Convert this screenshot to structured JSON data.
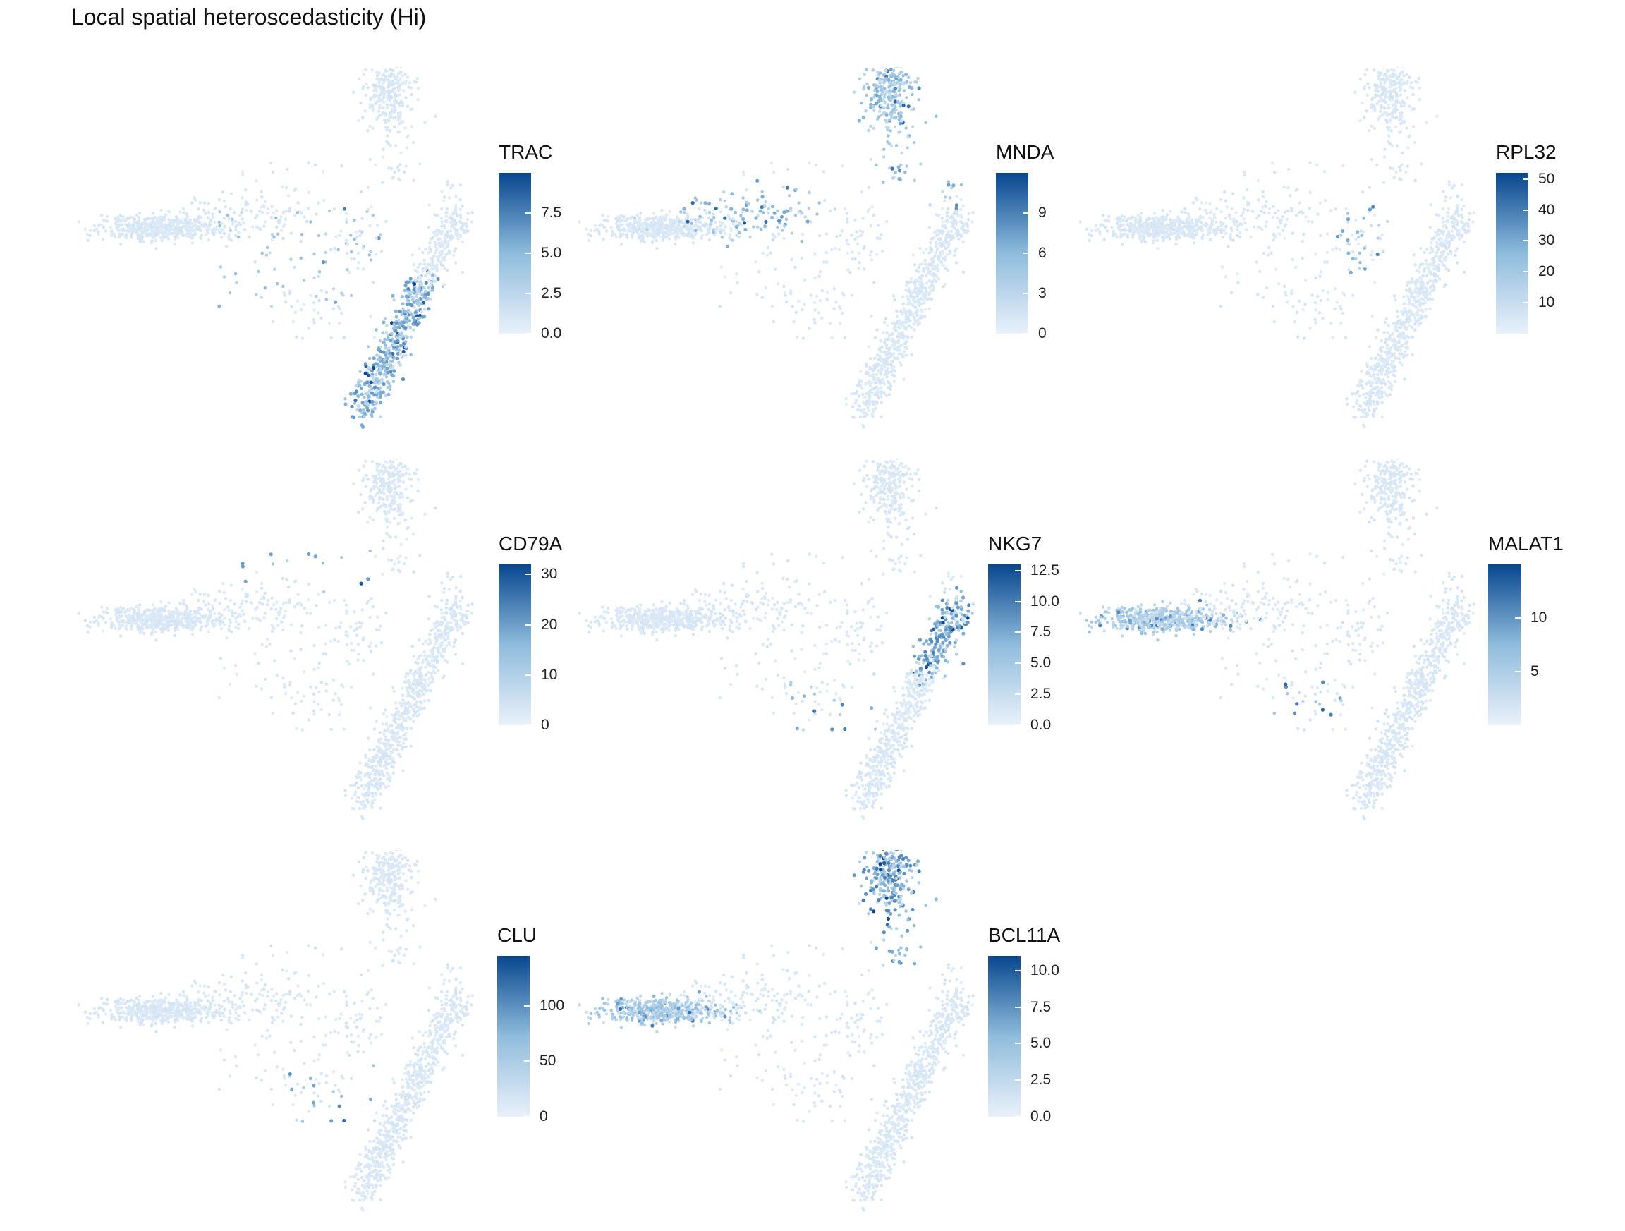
{
  "title": "Local spatial heteroscedasticity (Hi)",
  "colors": {
    "low": "#eaf1fb",
    "mid": "#8fbcdc",
    "high": "#08468f"
  },
  "chart_data": [
    {
      "type": "scatter",
      "gene": "TRAC",
      "legend_title": "TRAC",
      "ticks": [
        0.0,
        2.5,
        5.0,
        7.5
      ],
      "tick_labels": [
        "0.0",
        "2.5",
        "5.0",
        "7.5"
      ],
      "range": [
        0,
        10
      ],
      "hotspots": [
        {
          "region": "right-arm",
          "intensity": 0.55
        },
        {
          "region": "mid-scatter",
          "intensity": 0.35
        }
      ]
    },
    {
      "type": "scatter",
      "gene": "MNDA",
      "legend_title": "MNDA",
      "ticks": [
        0,
        3,
        6,
        9
      ],
      "tick_labels": [
        "0",
        "3",
        "6",
        "9"
      ],
      "range": [
        0,
        12
      ],
      "hotspots": [
        {
          "region": "left-arm-tip",
          "intensity": 0.55
        },
        {
          "region": "upper-arm",
          "intensity": 0.45
        },
        {
          "region": "top-blob",
          "intensity": 0.4
        }
      ]
    },
    {
      "type": "scatter",
      "gene": "RPL32",
      "legend_title": "RPL32",
      "ticks": [
        10,
        20,
        30,
        40,
        50
      ],
      "tick_labels": [
        "10",
        "20",
        "30",
        "40",
        "50"
      ],
      "range": [
        0,
        52
      ],
      "hotspots": [
        {
          "region": "junction",
          "intensity": 0.6
        }
      ]
    },
    {
      "type": "scatter",
      "gene": "CD79A",
      "legend_title": "CD79A",
      "ticks": [
        0,
        10,
        20,
        30
      ],
      "tick_labels": [
        "0",
        "10",
        "20",
        "30"
      ],
      "range": [
        0,
        32
      ],
      "hotspots": [
        {
          "region": "upper-sparse",
          "intensity": 0.5
        }
      ]
    },
    {
      "type": "scatter",
      "gene": "NKG7",
      "legend_title": "NKG7",
      "ticks": [
        0.0,
        2.5,
        5.0,
        7.5,
        10.0,
        12.5
      ],
      "tick_labels": [
        "0.0",
        "2.5",
        "5.0",
        "7.5",
        "10.0",
        "12.5"
      ],
      "range": [
        0,
        13
      ],
      "hotspots": [
        {
          "region": "right-arm-mid",
          "intensity": 0.6
        },
        {
          "region": "lower-sparse",
          "intensity": 0.7
        }
      ]
    },
    {
      "type": "scatter",
      "gene": "MALAT1",
      "legend_title": "MALAT1",
      "ticks": [
        5,
        10
      ],
      "tick_labels": [
        "5",
        "10"
      ],
      "range": [
        0,
        15
      ],
      "hotspots": [
        {
          "region": "left-arm",
          "intensity": 0.3
        },
        {
          "region": "lower-cluster",
          "intensity": 0.75
        }
      ]
    },
    {
      "type": "scatter",
      "gene": "CLU",
      "legend_title": "CLU",
      "ticks": [
        0,
        50,
        100
      ],
      "tick_labels": [
        "0",
        "50",
        "100"
      ],
      "range": [
        0,
        145
      ],
      "hotspots": [
        {
          "region": "lower-sparse",
          "intensity": 0.6
        }
      ]
    },
    {
      "type": "scatter",
      "gene": "BCL11A",
      "legend_title": "BCL11A",
      "ticks": [
        0.0,
        2.5,
        5.0,
        7.5,
        10.0
      ],
      "tick_labels": [
        "0.0",
        "2.5",
        "5.0",
        "7.5",
        "10.0"
      ],
      "range": [
        0,
        11
      ],
      "hotspots": [
        {
          "region": "top-blob",
          "intensity": 0.65
        },
        {
          "region": "left-arm",
          "intensity": 0.35
        }
      ]
    }
  ]
}
